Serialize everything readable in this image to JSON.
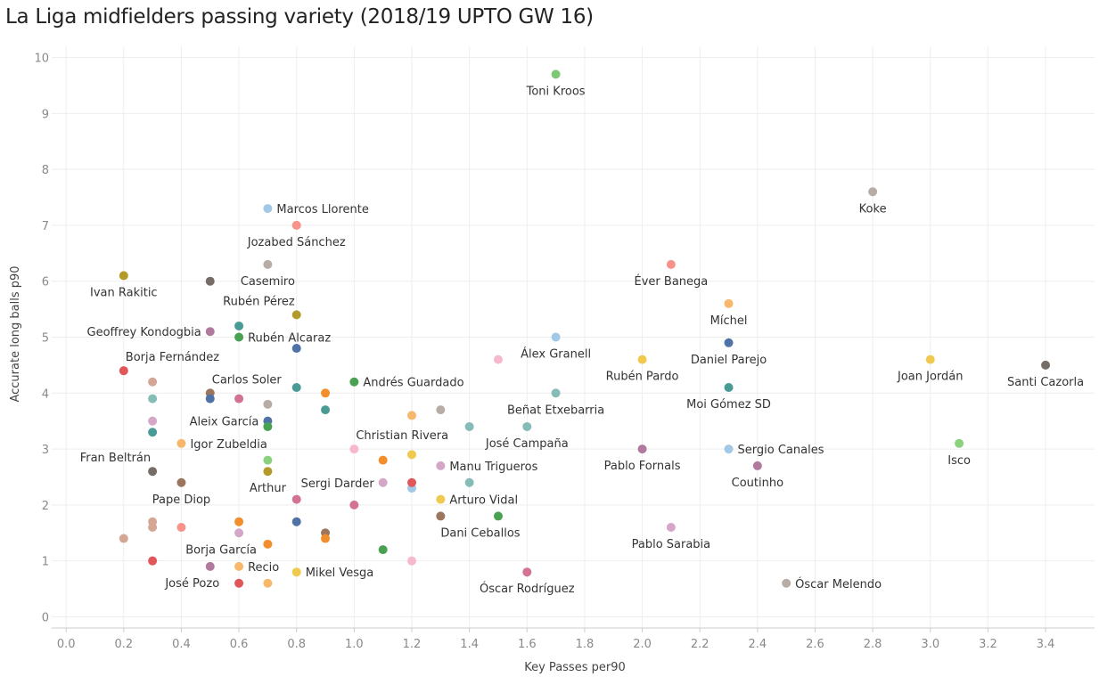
{
  "chart_data": {
    "type": "scatter",
    "title": "La Liga midfielders passing variety (2018/19 UPTO GW 16)",
    "xlabel": "Key Passes per90",
    "ylabel": "Accurate long balls p90",
    "xlim": [
      -0.05,
      3.57
    ],
    "ylim": [
      -0.2,
      10.2
    ],
    "x_ticks": [
      "0.0",
      "0.2",
      "0.4",
      "0.6",
      "0.8",
      "1.0",
      "1.2",
      "1.4",
      "1.6",
      "1.8",
      "2.0",
      "2.2",
      "2.4",
      "2.6",
      "2.8",
      "3.0",
      "3.2",
      "3.4"
    ],
    "y_ticks": [
      "0",
      "1",
      "2",
      "3",
      "4",
      "5",
      "6",
      "7",
      "8",
      "9",
      "10"
    ],
    "grid": true,
    "points": [
      {
        "x": 1.7,
        "y": 9.7,
        "color": "#7dc874",
        "label": "Toni Kroos",
        "pos": "below"
      },
      {
        "x": 2.8,
        "y": 7.6,
        "color": "#b8aca6",
        "label": "Koke",
        "pos": "below"
      },
      {
        "x": 0.7,
        "y": 7.3,
        "color": "#a1c8e6",
        "label": "Marcos Llorente",
        "pos": "right"
      },
      {
        "x": 0.8,
        "y": 7.0,
        "color": "#f8928a",
        "label": "Jozabed Sánchez",
        "pos": "below"
      },
      {
        "x": 0.2,
        "y": 6.1,
        "color": "#b49a2a",
        "label": "Ivan Rakitic",
        "pos": "below"
      },
      {
        "x": 0.7,
        "y": 6.3,
        "color": "#b8aca6",
        "label": "Casemiro",
        "pos": "below"
      },
      {
        "x": 0.5,
        "y": 6.0,
        "color": "#766c68",
        "label": "",
        "pos": "none"
      },
      {
        "x": 2.1,
        "y": 6.3,
        "color": "#f8928a",
        "label": "Éver Banega",
        "pos": "below"
      },
      {
        "x": 2.3,
        "y": 5.6,
        "color": "#f7b86c",
        "label": "Míchel",
        "pos": "below"
      },
      {
        "x": 0.8,
        "y": 5.4,
        "color": "#b49a2a",
        "label": "Rubén Pérez",
        "pos": "left-up"
      },
      {
        "x": 0.6,
        "y": 5.2,
        "color": "#4a9a96",
        "label": "",
        "pos": "none"
      },
      {
        "x": 0.6,
        "y": 5.0,
        "color": "#4aa152",
        "label": "Rubén Alcaraz",
        "pos": "right"
      },
      {
        "x": 0.5,
        "y": 5.1,
        "color": "#b2799e",
        "label": "Geoffrey Kondogbia",
        "pos": "left"
      },
      {
        "x": 0.8,
        "y": 4.8,
        "color": "#4f73a7",
        "label": "",
        "pos": "none"
      },
      {
        "x": 1.7,
        "y": 5.0,
        "color": "#a1c8e6",
        "label": "Álex Granell",
        "pos": "below"
      },
      {
        "x": 2.3,
        "y": 4.9,
        "color": "#4f73a7",
        "label": "Daniel Parejo",
        "pos": "below"
      },
      {
        "x": 1.5,
        "y": 4.6,
        "color": "#f7b8cc",
        "label": "",
        "pos": "none"
      },
      {
        "x": 2.0,
        "y": 4.6,
        "color": "#f0c94e",
        "label": "Rubén Pardo",
        "pos": "below"
      },
      {
        "x": 3.0,
        "y": 4.6,
        "color": "#f0c94e",
        "label": "Joan Jordán",
        "pos": "below"
      },
      {
        "x": 3.4,
        "y": 4.5,
        "color": "#766c68",
        "label": "Santi Cazorla",
        "pos": "below"
      },
      {
        "x": 0.2,
        "y": 4.4,
        "color": "#e15759",
        "label": "Borja Fernández",
        "pos": "right-up"
      },
      {
        "x": 0.3,
        "y": 4.2,
        "color": "#d4a696",
        "label": "",
        "pos": "none"
      },
      {
        "x": 0.8,
        "y": 4.1,
        "color": "#4a9a96",
        "label": "",
        "pos": "none"
      },
      {
        "x": 0.9,
        "y": 4.0,
        "color": "#f28e2b",
        "label": "",
        "pos": "none"
      },
      {
        "x": 1.0,
        "y": 4.2,
        "color": "#4aa152",
        "label": "Andrés Guardado",
        "pos": "right"
      },
      {
        "x": 1.7,
        "y": 4.0,
        "color": "#86bcb6",
        "label": "Beñat Etxebarria",
        "pos": "below"
      },
      {
        "x": 2.3,
        "y": 4.1,
        "color": "#4a9a96",
        "label": "Moi Gómez SD",
        "pos": "below"
      },
      {
        "x": 0.3,
        "y": 3.9,
        "color": "#86bcb6",
        "label": "",
        "pos": "none"
      },
      {
        "x": 0.5,
        "y": 4.0,
        "color": "#9c755f",
        "label": "Carlos Soler",
        "pos": "right-up"
      },
      {
        "x": 0.5,
        "y": 3.9,
        "color": "#4f73a7",
        "label": "",
        "pos": "none"
      },
      {
        "x": 0.6,
        "y": 3.9,
        "color": "#d37295",
        "label": "",
        "pos": "none"
      },
      {
        "x": 0.7,
        "y": 3.8,
        "color": "#b8aca6",
        "label": "",
        "pos": "none"
      },
      {
        "x": 0.9,
        "y": 3.7,
        "color": "#4a9a96",
        "label": "",
        "pos": "none"
      },
      {
        "x": 1.2,
        "y": 3.6,
        "color": "#f7b86c",
        "label": "",
        "pos": "none"
      },
      {
        "x": 1.3,
        "y": 3.7,
        "color": "#b8aca6",
        "label": "",
        "pos": "none"
      },
      {
        "x": 0.3,
        "y": 3.5,
        "color": "#d4a6c8",
        "label": "",
        "pos": "none"
      },
      {
        "x": 0.7,
        "y": 3.5,
        "color": "#4f73a7",
        "label": "Aleix García",
        "pos": "left"
      },
      {
        "x": 0.7,
        "y": 3.4,
        "color": "#4aa152",
        "label": "",
        "pos": "none"
      },
      {
        "x": 1.4,
        "y": 3.4,
        "color": "#86bcb6",
        "label": "",
        "pos": "none"
      },
      {
        "x": 1.6,
        "y": 3.4,
        "color": "#86bcb6",
        "label": "José Campaña",
        "pos": "below"
      },
      {
        "x": 0.3,
        "y": 3.3,
        "color": "#4a9a96",
        "label": "",
        "pos": "none"
      },
      {
        "x": 0.4,
        "y": 3.1,
        "color": "#f7b86c",
        "label": "Igor Zubeldia",
        "pos": "right"
      },
      {
        "x": 1.0,
        "y": 3.0,
        "color": "#f7b8cc",
        "label": "Christian Rivera",
        "pos": "right-up"
      },
      {
        "x": 1.2,
        "y": 2.9,
        "color": "#f0c94e",
        "label": "",
        "pos": "none"
      },
      {
        "x": 1.1,
        "y": 2.8,
        "color": "#f28e2b",
        "label": "",
        "pos": "none"
      },
      {
        "x": 2.0,
        "y": 3.0,
        "color": "#b2799e",
        "label": "Pablo Fornals",
        "pos": "below"
      },
      {
        "x": 2.3,
        "y": 3.0,
        "color": "#a1c8e6",
        "label": "Sergio Canales",
        "pos": "right"
      },
      {
        "x": 3.1,
        "y": 3.1,
        "color": "#8cd17d",
        "label": "Isco",
        "pos": "below"
      },
      {
        "x": 0.7,
        "y": 2.8,
        "color": "#8cd17d",
        "label": "",
        "pos": "none"
      },
      {
        "x": 1.3,
        "y": 2.7,
        "color": "#d4a6c8",
        "label": "Manu Trigueros",
        "pos": "right"
      },
      {
        "x": 2.4,
        "y": 2.7,
        "color": "#b2799e",
        "label": "Coutinho",
        "pos": "below"
      },
      {
        "x": 0.3,
        "y": 2.6,
        "color": "#766c68",
        "label": "Fran Beltrán",
        "pos": "left-up"
      },
      {
        "x": 0.7,
        "y": 2.6,
        "color": "#b49a2a",
        "label": "Arthur",
        "pos": "below"
      },
      {
        "x": 0.4,
        "y": 2.4,
        "color": "#9c755f",
        "label": "Pape Diop",
        "pos": "below"
      },
      {
        "x": 1.1,
        "y": 2.4,
        "color": "#d4a6c8",
        "label": "Sergi Darder",
        "pos": "left"
      },
      {
        "x": 1.2,
        "y": 2.3,
        "color": "#a1c8e6",
        "label": "",
        "pos": "none"
      },
      {
        "x": 1.2,
        "y": 2.4,
        "color": "#e15759",
        "label": "",
        "pos": "none"
      },
      {
        "x": 1.4,
        "y": 2.4,
        "color": "#86bcb6",
        "label": "",
        "pos": "none"
      },
      {
        "x": 0.8,
        "y": 2.1,
        "color": "#d37295",
        "label": "",
        "pos": "none"
      },
      {
        "x": 1.0,
        "y": 2.0,
        "color": "#d37295",
        "label": "",
        "pos": "none"
      },
      {
        "x": 1.3,
        "y": 2.1,
        "color": "#f0c94e",
        "label": "Arturo Vidal",
        "pos": "right"
      },
      {
        "x": 1.3,
        "y": 1.8,
        "color": "#9c755f",
        "label": "",
        "pos": "none"
      },
      {
        "x": 1.5,
        "y": 1.8,
        "color": "#4aa152",
        "label": "Dani Ceballos",
        "pos": "below-left"
      },
      {
        "x": 0.3,
        "y": 1.7,
        "color": "#d4a696",
        "label": "",
        "pos": "none"
      },
      {
        "x": 0.3,
        "y": 1.6,
        "color": "#d4a696",
        "label": "",
        "pos": "none"
      },
      {
        "x": 0.4,
        "y": 1.6,
        "color": "#f8928a",
        "label": "",
        "pos": "none"
      },
      {
        "x": 0.2,
        "y": 1.4,
        "color": "#d4a696",
        "label": "",
        "pos": "none"
      },
      {
        "x": 0.6,
        "y": 1.7,
        "color": "#f28e2b",
        "label": "",
        "pos": "none"
      },
      {
        "x": 0.6,
        "y": 1.5,
        "color": "#d4a6c8",
        "label": "Borja García",
        "pos": "below-left"
      },
      {
        "x": 0.8,
        "y": 1.7,
        "color": "#4f73a7",
        "label": "",
        "pos": "none"
      },
      {
        "x": 0.9,
        "y": 1.5,
        "color": "#9c755f",
        "label": "",
        "pos": "none"
      },
      {
        "x": 0.9,
        "y": 1.4,
        "color": "#f28e2b",
        "label": "",
        "pos": "none"
      },
      {
        "x": 0.7,
        "y": 1.3,
        "color": "#f28e2b",
        "label": "",
        "pos": "none"
      },
      {
        "x": 2.1,
        "y": 1.6,
        "color": "#d4a6c8",
        "label": "Pablo Sarabia",
        "pos": "below"
      },
      {
        "x": 1.1,
        "y": 1.2,
        "color": "#4aa152",
        "label": "",
        "pos": "none"
      },
      {
        "x": 0.3,
        "y": 1.0,
        "color": "#e15759",
        "label": "",
        "pos": "none"
      },
      {
        "x": 1.2,
        "y": 1.0,
        "color": "#f7b8cc",
        "label": "",
        "pos": "none"
      },
      {
        "x": 0.5,
        "y": 0.9,
        "color": "#b2799e",
        "label": "José Pozo",
        "pos": "below-left"
      },
      {
        "x": 0.6,
        "y": 0.9,
        "color": "#f7b86c",
        "label": "Recio",
        "pos": "right"
      },
      {
        "x": 0.8,
        "y": 0.8,
        "color": "#f0c94e",
        "label": "Mikel Vesga",
        "pos": "right"
      },
      {
        "x": 1.6,
        "y": 0.8,
        "color": "#d37295",
        "label": "Óscar Rodríguez",
        "pos": "below"
      },
      {
        "x": 0.6,
        "y": 0.6,
        "color": "#e15759",
        "label": "",
        "pos": "none"
      },
      {
        "x": 0.7,
        "y": 0.6,
        "color": "#f7b86c",
        "label": "",
        "pos": "none"
      },
      {
        "x": 2.5,
        "y": 0.6,
        "color": "#b8aca6",
        "label": "Óscar Melendo",
        "pos": "right"
      }
    ]
  }
}
